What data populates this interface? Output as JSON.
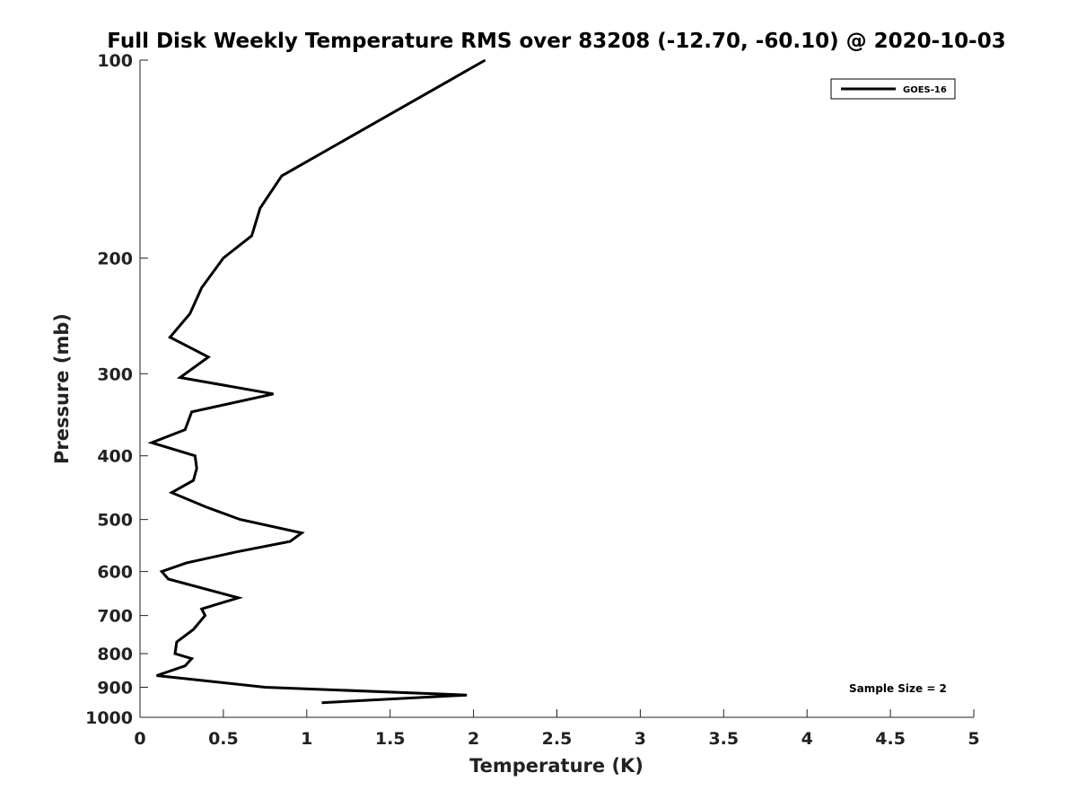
{
  "chart_data": {
    "type": "line",
    "title": "Full Disk Weekly Temperature RMS over 83208 (-12.70, -60.10) @ 2020-10-03",
    "xlabel": "Temperature (K)",
    "ylabel": "Pressure (mb)",
    "xlim": [
      0,
      5
    ],
    "ylim": [
      100,
      1000
    ],
    "yscale": "log",
    "yreversed": true,
    "xticks": [
      0,
      0.5,
      1,
      1.5,
      2,
      2.5,
      3,
      3.5,
      4,
      4.5,
      5
    ],
    "xtick_labels": [
      "0",
      "0.5",
      "1",
      "1.5",
      "2",
      "2.5",
      "3",
      "3.5",
      "4",
      "4.5",
      "5"
    ],
    "yticks": [
      100,
      200,
      300,
      400,
      500,
      600,
      700,
      800,
      900,
      1000
    ],
    "ytick_labels": [
      "100",
      "200",
      "300",
      "400",
      "500",
      "600",
      "700",
      "800",
      "900",
      "1000"
    ],
    "grid": false,
    "legend_position": "top-right",
    "series": [
      {
        "name": "GOES-16",
        "color": "#000000",
        "points": [
          {
            "x": 2.07,
            "p": 100
          },
          {
            "x": 0.85,
            "p": 150
          },
          {
            "x": 0.72,
            "p": 168
          },
          {
            "x": 0.67,
            "p": 185
          },
          {
            "x": 0.5,
            "p": 200
          },
          {
            "x": 0.37,
            "p": 222
          },
          {
            "x": 0.3,
            "p": 243
          },
          {
            "x": 0.18,
            "p": 264
          },
          {
            "x": 0.41,
            "p": 283
          },
          {
            "x": 0.24,
            "p": 304
          },
          {
            "x": 0.8,
            "p": 322
          },
          {
            "x": 0.31,
            "p": 343
          },
          {
            "x": 0.27,
            "p": 365
          },
          {
            "x": 0.07,
            "p": 382
          },
          {
            "x": 0.33,
            "p": 400
          },
          {
            "x": 0.34,
            "p": 418
          },
          {
            "x": 0.32,
            "p": 436
          },
          {
            "x": 0.19,
            "p": 455
          },
          {
            "x": 0.4,
            "p": 479
          },
          {
            "x": 0.6,
            "p": 500
          },
          {
            "x": 0.97,
            "p": 524
          },
          {
            "x": 0.9,
            "p": 540
          },
          {
            "x": 0.58,
            "p": 560
          },
          {
            "x": 0.28,
            "p": 582
          },
          {
            "x": 0.13,
            "p": 600
          },
          {
            "x": 0.17,
            "p": 616
          },
          {
            "x": 0.59,
            "p": 658
          },
          {
            "x": 0.37,
            "p": 684
          },
          {
            "x": 0.39,
            "p": 700
          },
          {
            "x": 0.32,
            "p": 735
          },
          {
            "x": 0.22,
            "p": 768
          },
          {
            "x": 0.21,
            "p": 800
          },
          {
            "x": 0.31,
            "p": 814
          },
          {
            "x": 0.27,
            "p": 835
          },
          {
            "x": 0.1,
            "p": 864
          },
          {
            "x": 0.75,
            "p": 900
          },
          {
            "x": 1.96,
            "p": 925
          },
          {
            "x": 1.09,
            "p": 950
          }
        ]
      }
    ],
    "annotations": [
      {
        "text": "Sample Size = 2",
        "position": "bottom-right"
      }
    ]
  }
}
